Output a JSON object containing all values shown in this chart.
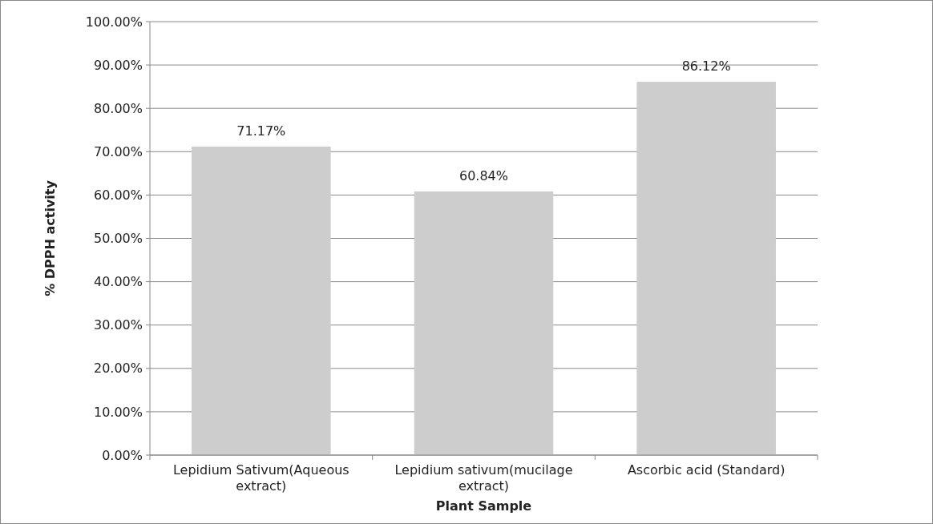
{
  "chart_data": {
    "type": "bar",
    "xlabel": "Plant Sample",
    "ylabel": "% DPPH activity",
    "categories": [
      "Lepidium Sativum(Aqueous extract)",
      "Lepidium sativum(mucilage extract)",
      "Ascorbic acid (Standard)"
    ],
    "values": [
      71.17,
      60.84,
      86.12
    ],
    "value_labels": [
      "71.17%",
      "60.84%",
      "86.12%"
    ],
    "color": "#cdcdcd",
    "ylim": [
      0,
      100
    ],
    "yticks": [
      {
        "value": 0,
        "label": "0.00%"
      },
      {
        "value": 10,
        "label": "10.00%"
      },
      {
        "value": 20,
        "label": "20.00%"
      },
      {
        "value": 30,
        "label": "30.00%"
      },
      {
        "value": 40,
        "label": "40.00%"
      },
      {
        "value": 50,
        "label": "50.00%"
      },
      {
        "value": 60,
        "label": "60.00%"
      },
      {
        "value": 70,
        "label": "70.00%"
      },
      {
        "value": 80,
        "label": "80.00%"
      },
      {
        "value": 90,
        "label": "90.00%"
      },
      {
        "value": 100,
        "label": "100.00%"
      }
    ],
    "grid": "y"
  }
}
